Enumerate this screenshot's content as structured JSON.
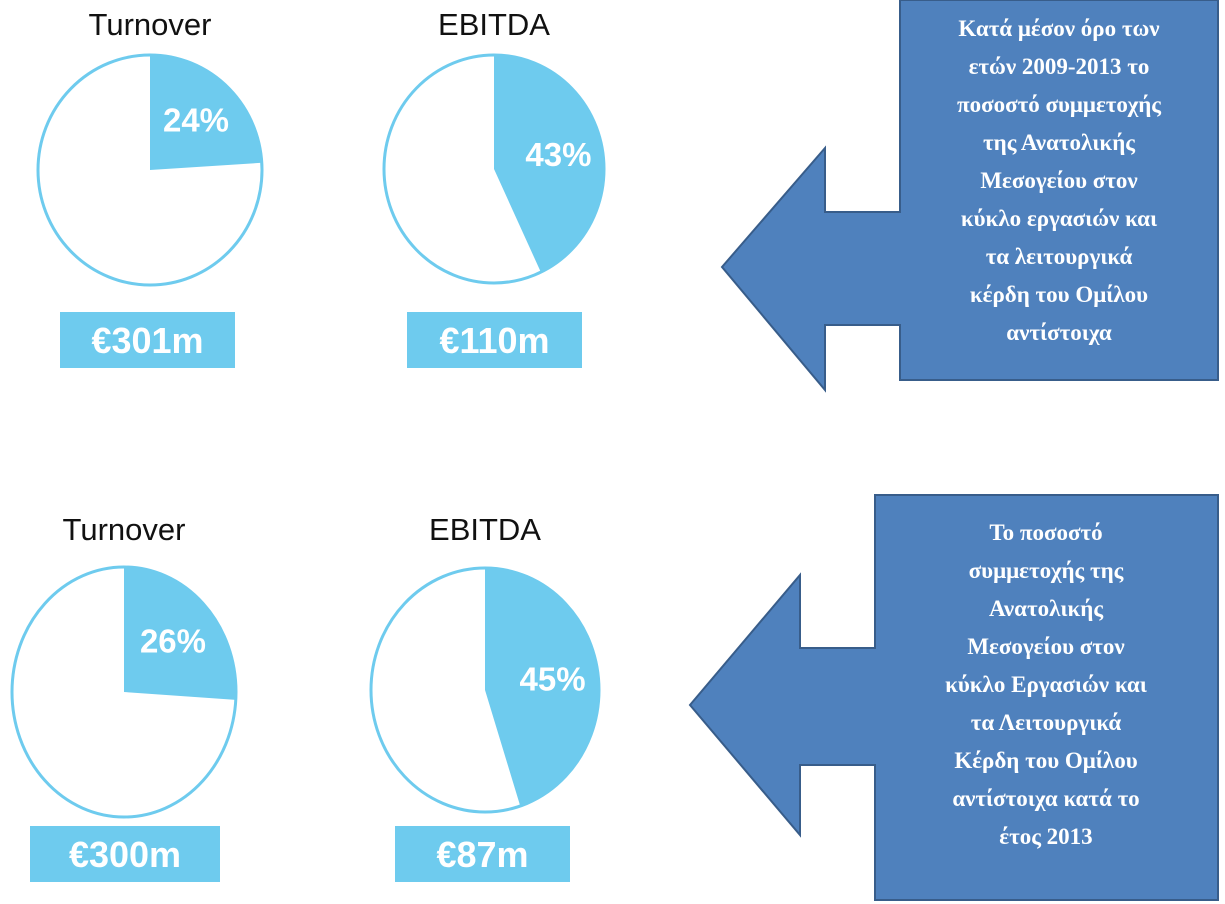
{
  "chart_data": [
    {
      "type": "pie",
      "title": "Turnover",
      "values": [
        24
      ],
      "value_labels": [
        "24%"
      ],
      "color": "#6ecbee",
      "caption": "€301m"
    },
    {
      "type": "pie",
      "title": "EBITDA",
      "values": [
        43
      ],
      "value_labels": [
        "43%"
      ],
      "color": "#6ecbee",
      "caption": "€110m"
    },
    {
      "type": "pie",
      "title": "Turnover",
      "values": [
        26
      ],
      "value_labels": [
        "26%"
      ],
      "color": "#6ecbee",
      "caption": "€300m"
    },
    {
      "type": "pie",
      "title": "EBITDA",
      "values": [
        45
      ],
      "value_labels": [
        "45%"
      ],
      "color": "#6ecbee",
      "caption": "€87m"
    }
  ],
  "callouts": [
    {
      "lines": [
        "Κατά μέσον όρο των",
        "ετών 2009-2013 το",
        "ποσοστό συμμετοχής",
        "της Ανατολικής",
        "Μεσογείου στον",
        "κύκλο εργασιών και",
        "τα λειτουργικά",
        "κέρδη του Ομίλου",
        "αντίστοιχα"
      ]
    },
    {
      "lines": [
        "Το ποσοστό",
        "συμμετοχής της",
        "Ανατολικής",
        "Μεσογείου στον",
        "κύκλο Εργασιών και",
        "τα Λειτουργικά",
        "Κέρδη του Ομίλου",
        "αντίστοιχα κατά το",
        "έτος 2013"
      ]
    }
  ]
}
